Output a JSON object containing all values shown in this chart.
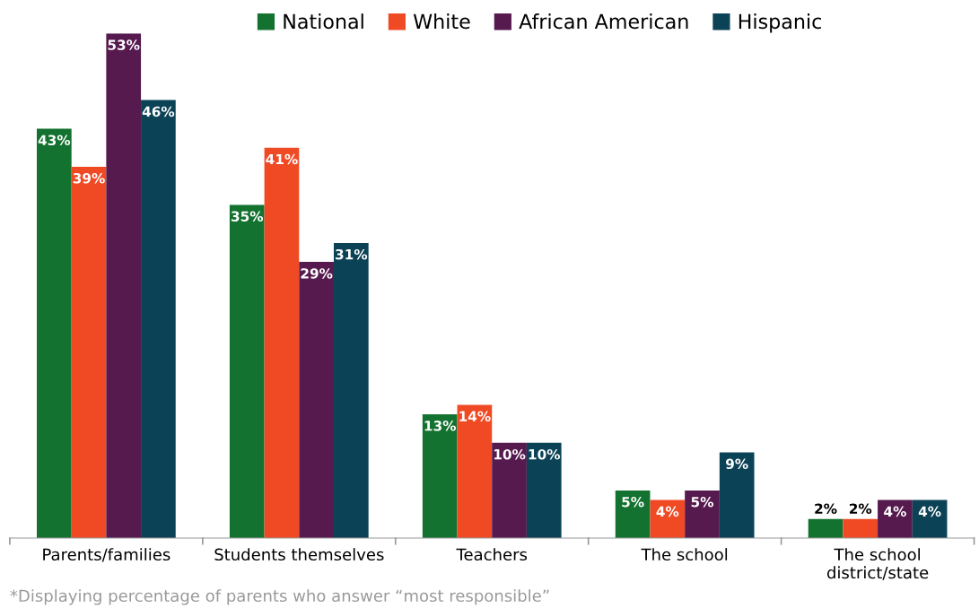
{
  "chart_data": {
    "type": "bar",
    "categories": [
      "Parents/families",
      "Students themselves",
      "Teachers",
      "The school",
      "The school\ndistrict/state"
    ],
    "series": [
      {
        "name": "National",
        "color": "#13722f",
        "values": [
          43,
          35,
          13,
          5,
          2
        ],
        "value_labels": [
          "43%",
          "35%",
          "13%",
          "5%",
          "2%"
        ]
      },
      {
        "name": "White",
        "color": "#f04a24",
        "values": [
          39,
          41,
          14,
          4,
          2
        ],
        "value_labels": [
          "39%",
          "41%",
          "14%",
          "4%",
          "2%"
        ]
      },
      {
        "name": "African American",
        "color": "#561a4f",
        "values": [
          53,
          29,
          10,
          5,
          4
        ],
        "value_labels": [
          "53%",
          "29%",
          "10%",
          "5%",
          "4%"
        ]
      },
      {
        "name": "Hispanic",
        "color": "#0b4256",
        "values": [
          46,
          31,
          10,
          9,
          4
        ],
        "value_labels": [
          "46%",
          "31%",
          "10%",
          "9%",
          "4%"
        ]
      }
    ],
    "legend": "top",
    "grid": false,
    "annotations": [
      "*Displaying percentage of parents who answer “most responsible”"
    ]
  }
}
